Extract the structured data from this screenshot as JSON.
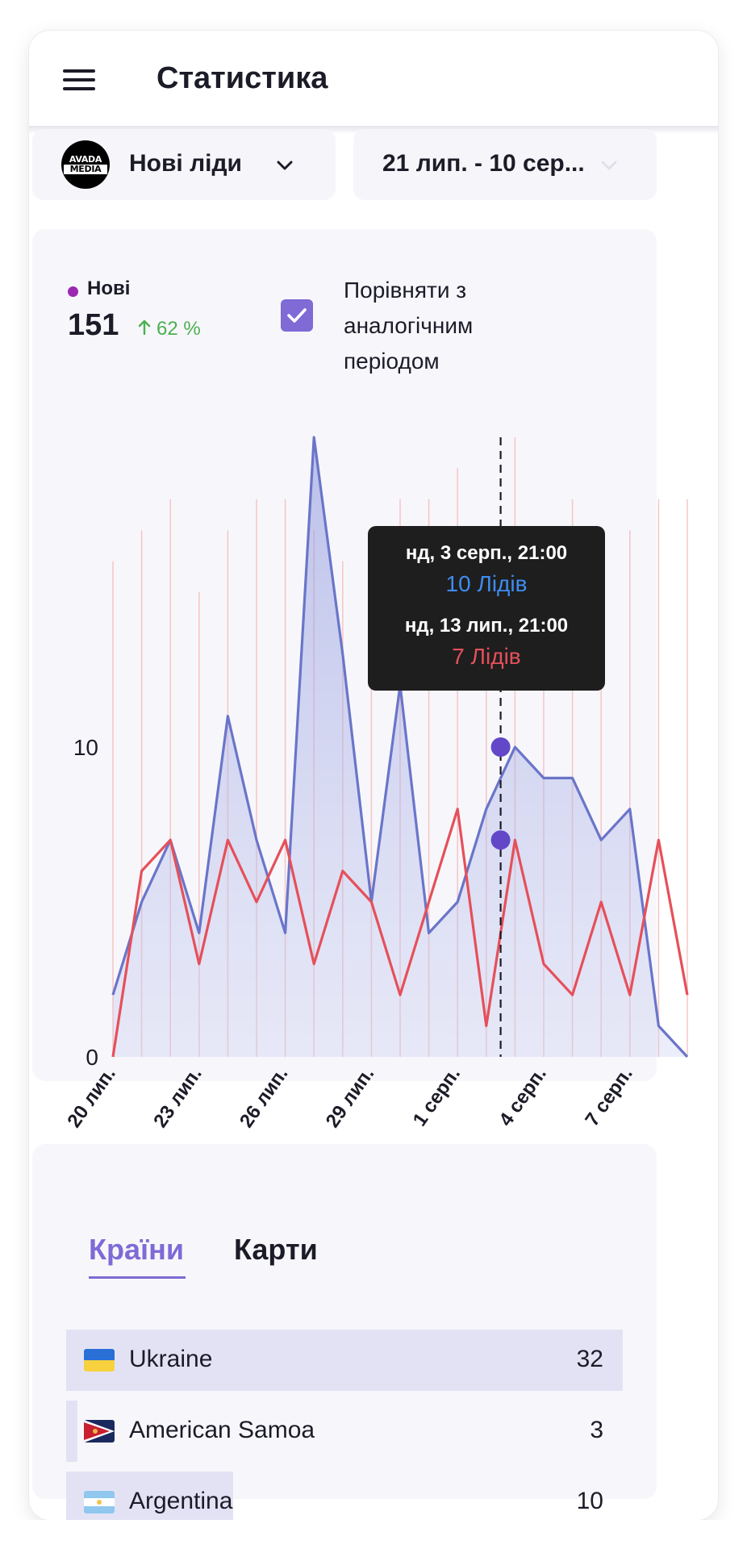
{
  "header": {
    "title": "Статистика",
    "menu_icon": "hamburger-menu-icon"
  },
  "filters": {
    "source_logo_text_top": "AVADA",
    "source_logo_text_bottom": "MEDIA",
    "source_label": "Нові ліди",
    "date_range": "21 лип. - 10 сер..."
  },
  "summary": {
    "series_label": "Нові",
    "series_color": "#9c27b0",
    "total": "151",
    "delta": "62 %",
    "delta_color": "#4caf50",
    "compare_checked": true,
    "compare_label_line1": "Порівняти з",
    "compare_label_line2": "аналогічним",
    "compare_label_line3": "періодом"
  },
  "tooltip": {
    "current_date": "нд, 3 серп., 21:00",
    "current_value": "10 Лідів",
    "previous_date": "нд, 13 лип., 21:00",
    "previous_value": "7 Лідів"
  },
  "chart_data": {
    "type": "area",
    "y_ticks": [
      "0",
      "10"
    ],
    "ylim": [
      0,
      20
    ],
    "x_tick_labels": [
      "20 лип.",
      "23 лип.",
      "26 лип.",
      "29 лип.",
      "1 серп.",
      "4 серп.",
      "7 серп."
    ],
    "x_tick_index": [
      0,
      3,
      6,
      9,
      12,
      15,
      18
    ],
    "series": [
      {
        "color": "#6a75c9",
        "fill": true,
        "values": [
          2,
          5,
          7,
          4,
          11,
          7,
          4,
          20,
          13,
          5,
          12,
          4,
          5,
          8,
          10,
          9,
          9,
          7,
          8,
          1,
          0
        ]
      },
      {
        "color": "#e5505a",
        "fill": false,
        "values": [
          0,
          6,
          7,
          3,
          7,
          5,
          7,
          3,
          6,
          5,
          2,
          5,
          8,
          1,
          7,
          3,
          2,
          5,
          2,
          7,
          2
        ]
      }
    ],
    "marker_index": 13.5,
    "marker_values": [
      10,
      7
    ],
    "bar_heights": [
      16,
      17,
      18,
      15,
      17,
      18,
      18,
      17,
      16,
      16,
      18,
      18,
      19,
      16,
      20,
      17,
      18,
      17,
      17,
      18,
      18
    ],
    "grid": false
  },
  "countries": {
    "tab_countries": "Країни",
    "tab_maps": "Карти",
    "active_tab": "Країни",
    "rows": [
      {
        "name": "Ukraine",
        "count": "32",
        "flag": "ukraine-flag-icon",
        "share": 1.0
      },
      {
        "name": "American Samoa",
        "count": "3",
        "flag": "american-samoa-flag-icon",
        "share": 0.02
      },
      {
        "name": "Argentina",
        "count": "10",
        "flag": "argentina-flag-icon",
        "share": 0.3
      }
    ]
  }
}
